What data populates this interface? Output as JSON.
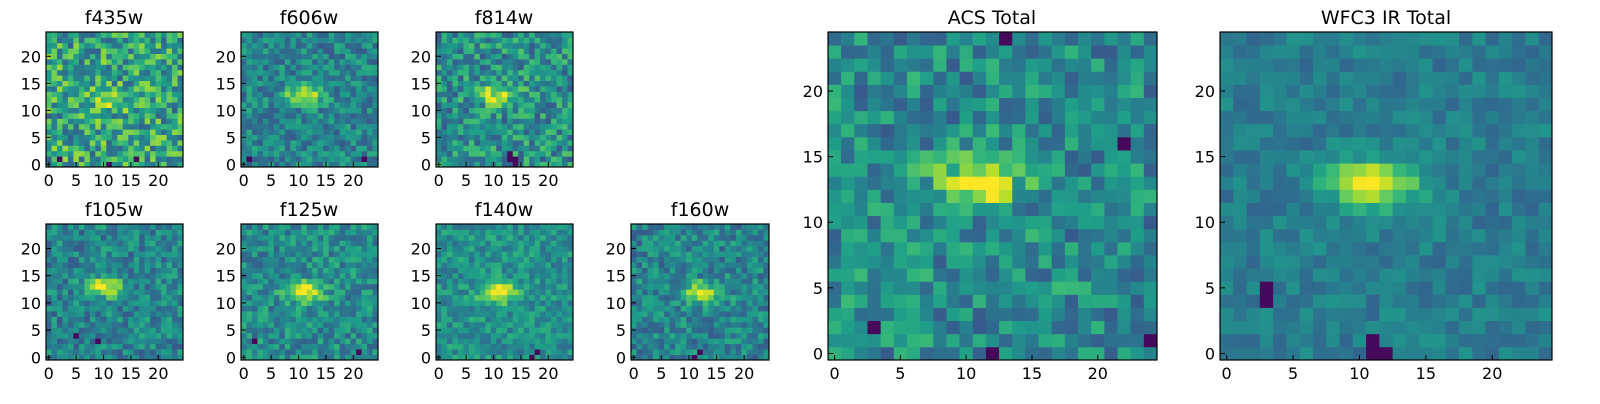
{
  "chart_data": [
    {
      "type": "heatmap",
      "title": "f435w",
      "xticks": [
        0,
        5,
        10,
        15,
        20
      ],
      "yticks": [
        0,
        5,
        10,
        15,
        20
      ],
      "xlim": [
        0,
        25
      ],
      "ylim": [
        0,
        25
      ],
      "grid": false,
      "peak": [
        11,
        12
      ],
      "noise": 0.55,
      "blob": 0.35,
      "holes": [
        [
          11,
          0
        ],
        [
          16,
          1
        ],
        [
          2,
          1
        ]
      ],
      "base": 0.58
    },
    {
      "type": "heatmap",
      "title": "f606w",
      "xticks": [
        0,
        5,
        10,
        15,
        20
      ],
      "yticks": [
        0,
        5,
        10,
        15,
        20
      ],
      "xlim": [
        0,
        25
      ],
      "ylim": [
        0,
        25
      ],
      "grid": false,
      "peak": [
        11,
        13
      ],
      "noise": 0.35,
      "blob": 0.5,
      "holes": [
        [
          22,
          1
        ],
        [
          1,
          1
        ]
      ],
      "base": 0.45
    },
    {
      "type": "heatmap",
      "title": "f814w",
      "xticks": [
        0,
        5,
        10,
        15,
        20
      ],
      "yticks": [
        0,
        5,
        10,
        15,
        20
      ],
      "xlim": [
        0,
        25
      ],
      "ylim": [
        0,
        25
      ],
      "grid": false,
      "peak": [
        11,
        13
      ],
      "noise": 0.45,
      "blob": 0.45,
      "holes": [
        [
          13,
          1
        ],
        [
          13,
          2
        ],
        [
          14,
          0
        ],
        [
          14,
          1
        ]
      ],
      "base": 0.5
    },
    {
      "type": "heatmap",
      "title": "f105w",
      "xticks": [
        0,
        5,
        10,
        15,
        20
      ],
      "yticks": [
        0,
        5,
        10,
        15,
        20
      ],
      "xlim": [
        0,
        25
      ],
      "ylim": [
        0,
        25
      ],
      "grid": false,
      "peak": [
        10,
        13
      ],
      "noise": 0.35,
      "blob": 0.55,
      "holes": [
        [
          5,
          4
        ],
        [
          9,
          3
        ]
      ],
      "base": 0.45
    },
    {
      "type": "heatmap",
      "title": "f125w",
      "xticks": [
        0,
        5,
        10,
        15,
        20
      ],
      "yticks": [
        0,
        5,
        10,
        15,
        20
      ],
      "xlim": [
        0,
        25
      ],
      "ylim": [
        0,
        25
      ],
      "grid": false,
      "peak": [
        11,
        12
      ],
      "noise": 0.35,
      "blob": 0.55,
      "holes": [
        [
          2,
          3
        ],
        [
          21,
          1
        ]
      ],
      "base": 0.48
    },
    {
      "type": "heatmap",
      "title": "f140w",
      "xticks": [
        0,
        5,
        10,
        15,
        20
      ],
      "yticks": [
        0,
        5,
        10,
        15,
        20
      ],
      "xlim": [
        0,
        25
      ],
      "ylim": [
        0,
        25
      ],
      "grid": false,
      "peak": [
        11,
        12
      ],
      "noise": 0.3,
      "blob": 0.6,
      "holes": [
        [
          17,
          0
        ],
        [
          18,
          1
        ]
      ],
      "base": 0.5
    },
    {
      "type": "heatmap",
      "title": "f160w",
      "xticks": [
        0,
        5,
        10,
        15,
        20
      ],
      "yticks": [
        0,
        5,
        10,
        15,
        20
      ],
      "xlim": [
        0,
        25
      ],
      "ylim": [
        0,
        25
      ],
      "grid": false,
      "peak": [
        12,
        12
      ],
      "noise": 0.35,
      "blob": 0.5,
      "holes": [
        [
          11,
          0
        ],
        [
          12,
          1
        ]
      ],
      "base": 0.45
    },
    {
      "type": "heatmap",
      "title": "ACS Total",
      "xticks": [
        0,
        5,
        10,
        15,
        20
      ],
      "yticks": [
        0,
        5,
        10,
        15,
        20
      ],
      "xlim": [
        0,
        25
      ],
      "ylim": [
        0,
        25
      ],
      "grid": false,
      "peak": [
        11,
        13
      ],
      "noise": 0.4,
      "blob": 0.5,
      "holes": [
        [
          13,
          24
        ],
        [
          3,
          2
        ],
        [
          12,
          0
        ],
        [
          22,
          16
        ],
        [
          24,
          1
        ]
      ],
      "base": 0.48
    },
    {
      "type": "heatmap",
      "title": "WFC3 IR Total",
      "xticks": [
        0,
        5,
        10,
        15,
        20
      ],
      "yticks": [
        0,
        5,
        10,
        15,
        20
      ],
      "xlim": [
        0,
        25
      ],
      "ylim": [
        0,
        25
      ],
      "grid": false,
      "peak": [
        11,
        13
      ],
      "noise": 0.2,
      "blob": 0.6,
      "holes": [
        [
          3,
          4
        ],
        [
          3,
          5
        ],
        [
          11,
          0
        ],
        [
          12,
          0
        ],
        [
          11,
          1
        ]
      ],
      "base": 0.42
    }
  ]
}
